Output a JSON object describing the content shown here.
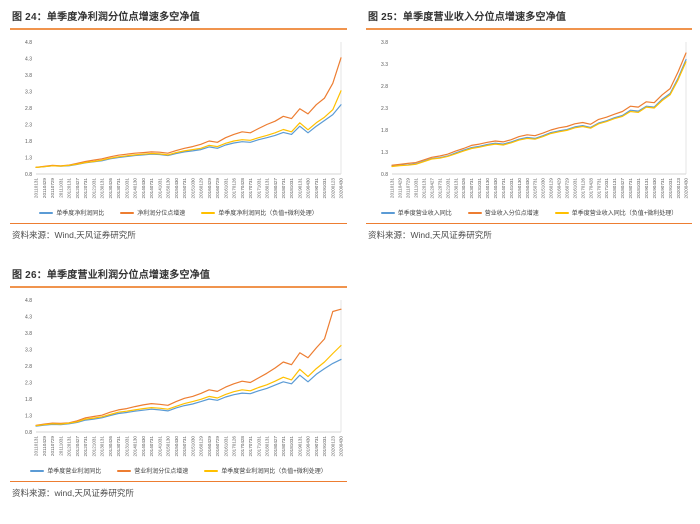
{
  "colors": {
    "accent_orange": "#ED7D31",
    "title_underline": "#F0944D",
    "series_blue": "#5B9BD5",
    "series_orange": "#ED7D31",
    "series_yellow": "#FFC000",
    "axis_text": "#595959"
  },
  "figures": [
    {
      "title": "图 24：单季度净利润分位点增速多空净值",
      "source": "资料来源：Wind,天风证券研究所"
    },
    {
      "title": "图 25：单季度营业收入分位点增速多空净值",
      "source": "资料来源：Wind,天风证券研究所"
    },
    {
      "title": "图 26：单季度营业利润分位点增速多空净值",
      "source": "资料来源：wind,天风证券研究所"
    }
  ],
  "chart_data": [
    {
      "type": "line",
      "title": "单季度净利润分位点增速多空净值",
      "x": [
        "20110131",
        "20110429",
        "20110729",
        "20111031",
        "20120131",
        "20120427",
        "20120731",
        "20121031",
        "20130131",
        "20130426",
        "20130731",
        "20131031",
        "20140130",
        "20140430",
        "20140731",
        "20141031",
        "20150130",
        "20150430",
        "20150731",
        "20151030",
        "20160129",
        "20160429",
        "20160729",
        "20161031",
        "20170126",
        "20170428",
        "20170731",
        "20171031",
        "20180131",
        "20180427",
        "20180731",
        "20181031",
        "20190131",
        "20190430",
        "20190731",
        "20191031",
        "20200123",
        "20200430"
      ],
      "ylim": [
        0.8,
        4.8
      ],
      "ytick_step": 0.5,
      "grid": false,
      "legend_position": "bottom",
      "series": [
        {
          "name": "单季度净利润同比",
          "color": "#5B9BD5",
          "values": [
            1.0,
            1.02,
            1.05,
            1.04,
            1.05,
            1.09,
            1.14,
            1.17,
            1.2,
            1.26,
            1.3,
            1.33,
            1.36,
            1.38,
            1.4,
            1.39,
            1.36,
            1.42,
            1.47,
            1.5,
            1.54,
            1.62,
            1.58,
            1.68,
            1.74,
            1.78,
            1.76,
            1.84,
            1.9,
            1.97,
            2.06,
            2.0,
            2.25,
            2.05,
            2.25,
            2.42,
            2.6,
            2.9
          ]
        },
        {
          "name": "净利润分位点增速",
          "color": "#ED7D31",
          "values": [
            1.0,
            1.03,
            1.06,
            1.05,
            1.07,
            1.12,
            1.18,
            1.22,
            1.26,
            1.32,
            1.37,
            1.4,
            1.43,
            1.45,
            1.47,
            1.46,
            1.43,
            1.51,
            1.58,
            1.63,
            1.7,
            1.8,
            1.76,
            1.9,
            2.0,
            2.08,
            2.05,
            2.18,
            2.3,
            2.4,
            2.55,
            2.48,
            2.78,
            2.62,
            2.9,
            3.1,
            3.55,
            4.32
          ]
        },
        {
          "name": "单季度净利润同比（负值+微利处理）",
          "color": "#FFC000",
          "values": [
            1.0,
            1.02,
            1.05,
            1.04,
            1.06,
            1.1,
            1.15,
            1.18,
            1.22,
            1.28,
            1.32,
            1.35,
            1.38,
            1.4,
            1.42,
            1.41,
            1.38,
            1.45,
            1.5,
            1.54,
            1.58,
            1.67,
            1.63,
            1.73,
            1.8,
            1.84,
            1.82,
            1.9,
            1.97,
            2.05,
            2.15,
            2.08,
            2.35,
            2.14,
            2.35,
            2.52,
            2.75,
            3.32
          ]
        }
      ]
    },
    {
      "type": "line",
      "title": "单季度营业收入分位点增速多空净值",
      "x": [
        "20110131",
        "20110429",
        "20110729",
        "20111031",
        "20120131",
        "20120427",
        "20120731",
        "20121031",
        "20130131",
        "20130426",
        "20130731",
        "20131031",
        "20140130",
        "20140430",
        "20140731",
        "20141031",
        "20150130",
        "20150430",
        "20150731",
        "20151030",
        "20160129",
        "20160429",
        "20160729",
        "20161031",
        "20170126",
        "20170428",
        "20170731",
        "20171031",
        "20180131",
        "20180427",
        "20180731",
        "20181031",
        "20190131",
        "20190430",
        "20190731",
        "20191031",
        "20200123",
        "20200430"
      ],
      "ylim": [
        0.8,
        3.8
      ],
      "ytick_step": 0.5,
      "grid": false,
      "legend_position": "bottom",
      "series": [
        {
          "name": "单季度营业收入同比",
          "color": "#5B9BD5",
          "values": [
            0.98,
            1.0,
            1.01,
            1.03,
            1.09,
            1.15,
            1.17,
            1.21,
            1.28,
            1.34,
            1.4,
            1.43,
            1.47,
            1.5,
            1.48,
            1.53,
            1.59,
            1.63,
            1.61,
            1.67,
            1.74,
            1.78,
            1.81,
            1.87,
            1.9,
            1.86,
            1.96,
            2.01,
            2.08,
            2.13,
            2.25,
            2.23,
            2.34,
            2.32,
            2.5,
            2.63,
            2.98,
            3.4
          ]
        },
        {
          "name": "营业收入分位点增速",
          "color": "#ED7D31",
          "values": [
            1.0,
            1.02,
            1.04,
            1.06,
            1.12,
            1.18,
            1.21,
            1.25,
            1.32,
            1.38,
            1.45,
            1.48,
            1.52,
            1.55,
            1.53,
            1.58,
            1.65,
            1.69,
            1.67,
            1.73,
            1.8,
            1.85,
            1.88,
            1.94,
            1.97,
            1.93,
            2.04,
            2.09,
            2.16,
            2.22,
            2.34,
            2.32,
            2.44,
            2.42,
            2.6,
            2.74,
            3.12,
            3.55
          ]
        },
        {
          "name": "单季度营业收入同比（负值+微利处理）",
          "color": "#FFC000",
          "values": [
            0.97,
            0.99,
            1.0,
            1.02,
            1.08,
            1.14,
            1.16,
            1.2,
            1.26,
            1.32,
            1.38,
            1.41,
            1.45,
            1.48,
            1.46,
            1.51,
            1.57,
            1.61,
            1.59,
            1.65,
            1.72,
            1.76,
            1.79,
            1.85,
            1.88,
            1.84,
            1.94,
            1.99,
            2.06,
            2.11,
            2.22,
            2.2,
            2.32,
            2.3,
            2.47,
            2.6,
            2.94,
            3.35
          ]
        }
      ]
    },
    {
      "type": "line",
      "title": "单季度营业利润分位点增速多空净值",
      "x": [
        "20110131",
        "20110429",
        "20110729",
        "20111031",
        "20120131",
        "20120427",
        "20120731",
        "20121031",
        "20130131",
        "20130426",
        "20130731",
        "20131031",
        "20140130",
        "20140430",
        "20140731",
        "20141031",
        "20150130",
        "20150430",
        "20150731",
        "20151030",
        "20160129",
        "20160429",
        "20160729",
        "20161031",
        "20170126",
        "20170428",
        "20170731",
        "20171031",
        "20180131",
        "20180427",
        "20180731",
        "20181031",
        "20190131",
        "20190430",
        "20190731",
        "20191031",
        "20200123",
        "20200430"
      ],
      "ylim": [
        0.8,
        4.8
      ],
      "ytick_step": 0.5,
      "grid": false,
      "legend_position": "bottom",
      "series": [
        {
          "name": "单季度营业利润同比",
          "color": "#5B9BD5",
          "values": [
            0.98,
            1.01,
            1.03,
            1.02,
            1.05,
            1.09,
            1.16,
            1.19,
            1.23,
            1.3,
            1.36,
            1.39,
            1.43,
            1.46,
            1.49,
            1.47,
            1.44,
            1.53,
            1.6,
            1.65,
            1.72,
            1.8,
            1.76,
            1.86,
            1.93,
            1.98,
            1.96,
            2.05,
            2.12,
            2.22,
            2.32,
            2.26,
            2.52,
            2.32,
            2.55,
            2.72,
            2.88,
            3.0
          ]
        },
        {
          "name": "营业利润分位点增速",
          "color": "#ED7D31",
          "values": [
            1.0,
            1.04,
            1.07,
            1.06,
            1.08,
            1.14,
            1.23,
            1.27,
            1.31,
            1.4,
            1.47,
            1.51,
            1.57,
            1.62,
            1.66,
            1.64,
            1.61,
            1.72,
            1.82,
            1.88,
            1.97,
            2.08,
            2.03,
            2.16,
            2.26,
            2.34,
            2.3,
            2.44,
            2.58,
            2.74,
            2.92,
            2.84,
            3.2,
            3.05,
            3.35,
            3.62,
            4.45,
            4.52
          ]
        },
        {
          "name": "单季度营业利润同比（负值+微利处理）",
          "color": "#FFC000",
          "values": [
            0.99,
            1.02,
            1.05,
            1.04,
            1.07,
            1.11,
            1.19,
            1.22,
            1.26,
            1.33,
            1.4,
            1.43,
            1.47,
            1.51,
            1.54,
            1.52,
            1.49,
            1.58,
            1.66,
            1.72,
            1.79,
            1.88,
            1.83,
            1.94,
            2.02,
            2.08,
            2.05,
            2.15,
            2.23,
            2.34,
            2.46,
            2.38,
            2.7,
            2.48,
            2.72,
            2.92,
            3.18,
            3.42
          ]
        }
      ]
    }
  ]
}
